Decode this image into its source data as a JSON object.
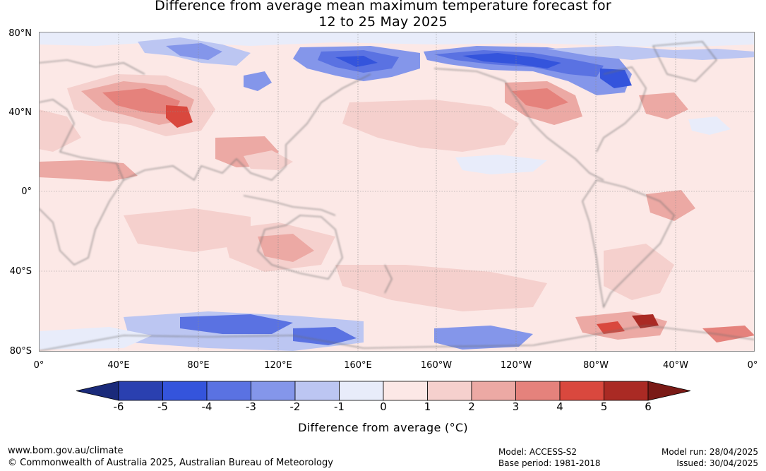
{
  "title": {
    "line1": "Difference from average mean maximum temperature forecast for",
    "line2": "12 to 25 May 2025"
  },
  "map": {
    "lat_ticks": [
      "80°N",
      "40°N",
      "0°",
      "40°S",
      "80°S"
    ],
    "lon_ticks": [
      "0°",
      "40°E",
      "80°E",
      "120°E",
      "160°E",
      "160°W",
      "120°W",
      "80°W",
      "40°W",
      "0°"
    ]
  },
  "colorbar": {
    "title": "Difference from average (°C)",
    "labels": [
      "-6",
      "-5",
      "-4",
      "-3",
      "-2",
      "-1",
      "0",
      "1",
      "2",
      "3",
      "4",
      "5",
      "6"
    ],
    "colors": [
      "#1a2a7a",
      "#2a40b0",
      "#3454dc",
      "#5a72e2",
      "#8496ea",
      "#bcc6f2",
      "#e8ecfa",
      "#fce8e6",
      "#f5d0cd",
      "#eca9a4",
      "#e5827c",
      "#d9483e",
      "#aa2a24",
      "#7a1a16"
    ]
  },
  "footer": {
    "website": "www.bom.gov.au/climate",
    "copyright": "© Commonwealth of Australia 2025, Australian Bureau of Meteorology",
    "model": "Model: ACCESS-S2",
    "base_period": "Base period: 1981-2018",
    "model_run": "Model run: 28/04/2025",
    "issued": "Issued: 30/04/2025"
  }
}
